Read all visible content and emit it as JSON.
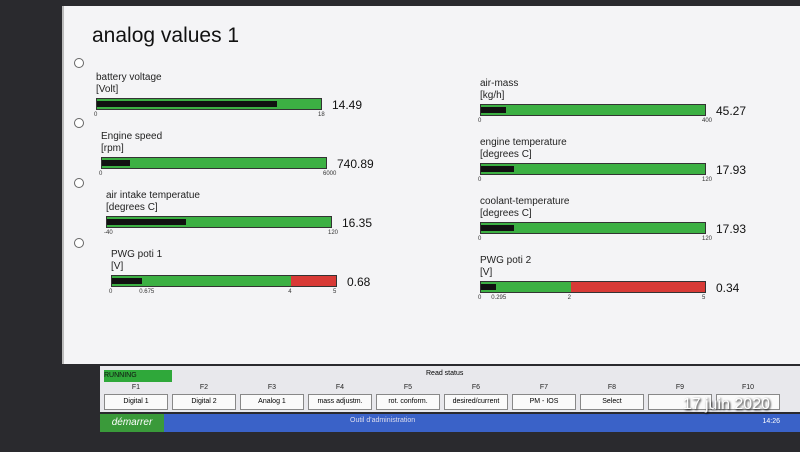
{
  "title": "analog values 1",
  "gauges": [
    {
      "label": "battery voltage",
      "unit": "[Volt]",
      "min": 0,
      "max": 18,
      "value": 14.49,
      "ticks": [],
      "red_zone": false
    },
    {
      "label": "Engine speed",
      "unit": "[rpm]",
      "min": 0,
      "max": 6000,
      "value": 740.89,
      "ticks": [],
      "red_zone": false
    },
    {
      "label": "air intake temperatue",
      "unit": "[degrees C]",
      "min": -40,
      "max": 120,
      "value": 16.35,
      "ticks": [],
      "red_zone": false
    },
    {
      "label": "PWG poti 1",
      "unit": "[V]",
      "min": 0,
      "max": 5,
      "value": 0.68,
      "ticks": [
        0.675,
        4
      ],
      "red_zone": true
    },
    {
      "label": "air-mass",
      "unit": "[kg/h]",
      "min": 0,
      "max": 400,
      "value": 45.27,
      "ticks": [],
      "red_zone": false
    },
    {
      "label": "engine temperature",
      "unit": "[degrees C]",
      "min": 0,
      "max": 120,
      "value": 17.93,
      "ticks": [],
      "red_zone": false
    },
    {
      "label": "coolant-temperature",
      "unit": "[degrees C]",
      "min": 0,
      "max": 120,
      "value": 17.93,
      "ticks": [],
      "red_zone": false
    },
    {
      "label": "PWG poti 2",
      "unit": "[V]",
      "min": 0,
      "max": 5,
      "value": 0.34,
      "ticks": [
        0.295,
        2
      ],
      "red_zone": true
    }
  ],
  "status": {
    "state": "RUNNING",
    "text": "Read status"
  },
  "function_keys": [
    {
      "key": "F1",
      "label": "Digital 1"
    },
    {
      "key": "F2",
      "label": "Digital 2"
    },
    {
      "key": "F3",
      "label": "Analog 1"
    },
    {
      "key": "F4",
      "label": "mass adjustm."
    },
    {
      "key": "F5",
      "label": "rot. conform."
    },
    {
      "key": "F6",
      "label": "desired/current"
    },
    {
      "key": "F7",
      "label": "PM - IOS"
    },
    {
      "key": "F8",
      "label": "Select"
    },
    {
      "key": "F9"
    },
    {
      "key": "F10"
    }
  ],
  "taskbar": {
    "start": "démarrer",
    "window": "Outil d'administration",
    "clock": "14:26"
  },
  "photo_date": "17 juin 2020"
}
